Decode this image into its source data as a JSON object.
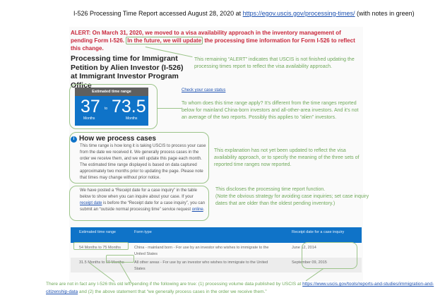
{
  "title": {
    "prefix": "I-526 Processing Time Report  accessed  August 28, 2020 at ",
    "url": "https://egov.uscis.gov/processing-times/",
    "suffix": "  (with notes in green)"
  },
  "alert": {
    "part1": "ALERT: On March 31, 2020, we moved to a visa availability approach in the inventory management of pending Form I-526. ",
    "highlight": "In the future, we will update",
    "part2": " the processing time information for Form I-526 to reflect this change."
  },
  "page_heading": "Processing time for Immigrant Petition by Alien Investor (I-526) at Immigrant Investor Program Office",
  "estimate": {
    "header": "Estimated time range",
    "low": "37",
    "to": "to",
    "high": "73.5",
    "low_unit": "Months",
    "high_unit": "Months"
  },
  "check_status_link": "Check your case status",
  "how": {
    "heading": "How we process cases",
    "body": "This time range is how long it is taking USCIS to process your case from the date we received it. We generally process cases in the order we receive them, and we will update this page each month. The estimated time range displayed is based on data captured approximately two months prior to updating the page. Please note that times may change without prior notice.",
    "inquiry_pre": "We have posted a “Receipt date for a case inquiry” in the table below to show when you can inquire about your case. If your ",
    "receipt_link": "receipt date",
    "inquiry_mid": " is before the “Receipt date for a case inquiry”, you can submit an “outside normal processing time” service request ",
    "online_link": "online",
    "inquiry_end": "."
  },
  "table": {
    "headers": [
      "Estimated time range",
      "Form type",
      "Receipt date for a case inquiry"
    ],
    "rows": [
      [
        "54 Months to 75 Months",
        "China - mainland born - For use by an investor who wishes to immigrate to the United States",
        "June 12, 2014"
      ],
      [
        "31.5 Months to 60 Months",
        "All other areas - For use by an investor who wishes to immigrate to the United States",
        "September 09, 2015"
      ]
    ]
  },
  "notes": {
    "alert_note": "This remaining “ALERT” indicates that USCIS is not finished updating the processing times report to reflect the visa availability approach.",
    "range_note": "To whom does this time range apply? It’s different from the time ranges reported below for mainland China-born investors and all-other-area investors. And it’s not an average of the two reports. Possibly this applies to “alien” investors.",
    "explanation_note": "This explanation has not yet been updated to reflect the visa availability approach, or to specify the meaning of the three sets of reported time ranges now reported.",
    "function_note": "This discloses the processing time report function.",
    "strategy_note": "(Note the obvious strategy for avoiding case inquiries; set case inquiry dates that are older than the oldest pending inventory.)",
    "footer_pre": "There are not in fact any I-526 this old left pending if the following are true: (1) processing volume data published by USCIS at ",
    "footer_url": "https://www.uscis.gov/tools/reports-and-studies/immigration-and-citizenship-data",
    "footer_post": " and (2) the above statement that “we generally process cases in the order we receive them.”"
  },
  "colors": {
    "note_green": "#6fa85a",
    "alert_red": "#c8283c",
    "uscis_blue": "#0f73c8"
  }
}
